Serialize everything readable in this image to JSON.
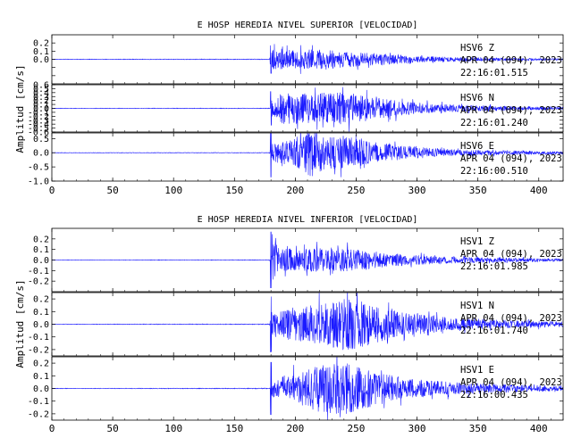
{
  "chart_data": [
    {
      "type": "line",
      "title": "E HOSP HEREDIA NIVEL SUPERIOR [VELOCIDAD]",
      "ylabel": "Amplitud [cm/s]",
      "xlim": [
        0,
        420
      ],
      "x_ticks": [
        0,
        50,
        100,
        150,
        200,
        250,
        300,
        350,
        400
      ],
      "series_color": "#1a1aff",
      "panels": [
        {
          "station": "HSV6",
          "component": "Z",
          "date": "APR 04 (094), 2023",
          "time": "22:16:01.515",
          "ylim": [
            -0.3,
            0.3
          ],
          "yticks": [
            -0.2,
            -0.1,
            0.0,
            0.1,
            0.2
          ],
          "tick_labels": [
            "",
            "",
            "0.0",
            "0.1",
            "0.2"
          ],
          "onset": 180,
          "peak_amplitude": 0.18,
          "pre_event_noise": 0.004,
          "envelope": [
            [
              0,
              0.003
            ],
            [
              179,
              0.004
            ],
            [
              180,
              0.18
            ],
            [
              185,
              0.14
            ],
            [
              200,
              0.11
            ],
            [
              225,
              0.13
            ],
            [
              240,
              0.1
            ],
            [
              270,
              0.07
            ],
            [
              300,
              0.04
            ],
            [
              340,
              0.025
            ],
            [
              380,
              0.015
            ],
            [
              420,
              0.01
            ]
          ]
        },
        {
          "station": "HSV6",
          "component": "N",
          "date": "APR 04 (094), 2023",
          "time": "22:16:01.240",
          "ylim": [
            -0.6,
            0.6
          ],
          "yticks": [
            -0.6,
            -0.5,
            -0.4,
            -0.3,
            -0.2,
            -0.1,
            0.0,
            0.1,
            0.2,
            0.3,
            0.4,
            0.5,
            0.6
          ],
          "tick_labels": [
            "-0.6",
            "-0.5",
            "-0.4",
            "-0.3",
            "-0.2",
            "-0.1",
            "0.0",
            "0.1",
            "0.2",
            "0.3",
            "0.4",
            "0.5",
            "0.6"
          ],
          "onset": 180,
          "peak_amplitude": 0.45,
          "pre_event_noise": 0.01,
          "envelope": [
            [
              0,
              0.006
            ],
            [
              179,
              0.008
            ],
            [
              180,
              0.22
            ],
            [
              190,
              0.4
            ],
            [
              210,
              0.38
            ],
            [
              235,
              0.42
            ],
            [
              260,
              0.3
            ],
            [
              290,
              0.17
            ],
            [
              330,
              0.09
            ],
            [
              380,
              0.05
            ],
            [
              420,
              0.03
            ]
          ]
        },
        {
          "station": "HSV6",
          "component": "E",
          "date": "APR 04 (094), 2023",
          "time": "22:16:00.510",
          "ylim": [
            -1.0,
            0.7
          ],
          "yticks": [
            -1.0,
            -0.5,
            0.0,
            0.5
          ],
          "tick_labels": [
            "-1.0",
            "-0.5",
            "0.0",
            "0.5"
          ],
          "onset": 180,
          "peak_amplitude": 0.9,
          "pre_event_noise": 0.01,
          "envelope": [
            [
              0,
              0.008
            ],
            [
              179,
              0.01
            ],
            [
              180,
              0.3
            ],
            [
              195,
              0.45
            ],
            [
              215,
              0.9
            ],
            [
              225,
              0.55
            ],
            [
              240,
              0.6
            ],
            [
              260,
              0.4
            ],
            [
              290,
              0.25
            ],
            [
              330,
              0.12
            ],
            [
              380,
              0.07
            ],
            [
              420,
              0.05
            ]
          ]
        }
      ]
    },
    {
      "type": "line",
      "title": "E HOSP HEREDIA NIVEL INFERIOR [VELOCIDAD]",
      "ylabel": "Amplitud [cm/s]",
      "xlim": [
        0,
        420
      ],
      "x_ticks": [
        0,
        50,
        100,
        150,
        200,
        250,
        300,
        350,
        400
      ],
      "series_color": "#1a1aff",
      "panels": [
        {
          "station": "HSV1",
          "component": "Z",
          "date": "APR 04 (094), 2023",
          "time": "22:16:01.985",
          "ylim": [
            -0.3,
            0.3
          ],
          "yticks": [
            -0.2,
            -0.1,
            0.0,
            0.1,
            0.2
          ],
          "tick_labels": [
            "-0.2",
            "-0.1",
            "0.0",
            "0.1",
            "0.2"
          ],
          "onset": 180,
          "peak_amplitude": 0.28,
          "pre_event_noise": 0.003,
          "envelope": [
            [
              0,
              0.002
            ],
            [
              179,
              0.003
            ],
            [
              180,
              0.28
            ],
            [
              186,
              0.12
            ],
            [
              205,
              0.1
            ],
            [
              230,
              0.12
            ],
            [
              250,
              0.1
            ],
            [
              280,
              0.06
            ],
            [
              310,
              0.04
            ],
            [
              350,
              0.025
            ],
            [
              420,
              0.012
            ]
          ]
        },
        {
          "station": "HSV1",
          "component": "N",
          "date": "APR 04 (094), 2023",
          "time": "22:16:01.740",
          "ylim": [
            -0.25,
            0.25
          ],
          "yticks": [
            -0.2,
            -0.1,
            0.0,
            0.1,
            0.2
          ],
          "tick_labels": [
            "-0.2",
            "-0.1",
            "0.0",
            "0.1",
            "0.2"
          ],
          "onset": 180,
          "peak_amplitude": 0.23,
          "pre_event_noise": 0.003,
          "envelope": [
            [
              0,
              0.002
            ],
            [
              179,
              0.003
            ],
            [
              180,
              0.08
            ],
            [
              195,
              0.13
            ],
            [
              220,
              0.16
            ],
            [
              245,
              0.21
            ],
            [
              265,
              0.15
            ],
            [
              290,
              0.09
            ],
            [
              330,
              0.05
            ],
            [
              380,
              0.03
            ],
            [
              420,
              0.02
            ]
          ]
        },
        {
          "station": "HSV1",
          "component": "E",
          "date": "APR 04 (094), 2023",
          "time": "22:16:00.435",
          "ylim": [
            -0.25,
            0.25
          ],
          "yticks": [
            -0.2,
            -0.1,
            0.0,
            0.1,
            0.2
          ],
          "tick_labels": [
            "-0.2",
            "-0.1",
            "0.0",
            "0.1",
            "0.2"
          ],
          "onset": 180,
          "peak_amplitude": 0.22,
          "pre_event_noise": 0.003,
          "envelope": [
            [
              0,
              0.002
            ],
            [
              179,
              0.003
            ],
            [
              180,
              0.07
            ],
            [
              200,
              0.12
            ],
            [
              225,
              0.2
            ],
            [
              245,
              0.2
            ],
            [
              265,
              0.14
            ],
            [
              290,
              0.08
            ],
            [
              330,
              0.05
            ],
            [
              380,
              0.03
            ],
            [
              420,
              0.02
            ]
          ]
        }
      ]
    }
  ]
}
